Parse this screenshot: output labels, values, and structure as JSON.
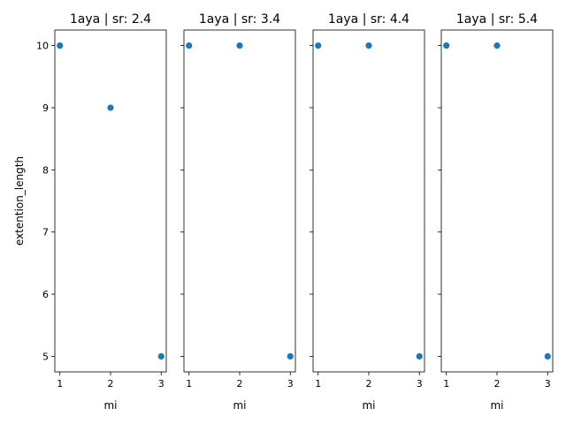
{
  "chart_data": [
    {
      "type": "scatter",
      "title": "1aya | sr: 2.4",
      "xlabel": "mi",
      "ylabel": "extention_length",
      "x": [
        1,
        2,
        3
      ],
      "y": [
        10,
        9,
        5
      ],
      "xlim": [
        0.9,
        3.1
      ],
      "ylim": [
        4.75,
        10.25
      ],
      "xticks": [
        1,
        2,
        3
      ],
      "yticks": [
        5,
        6,
        7,
        8,
        9,
        10
      ],
      "color": "#1f77b4",
      "grid": false
    },
    {
      "type": "scatter",
      "title": "1aya | sr: 3.4",
      "xlabel": "mi",
      "ylabel": "",
      "x": [
        1,
        2,
        3
      ],
      "y": [
        10,
        10,
        5
      ],
      "xlim": [
        0.9,
        3.1
      ],
      "ylim": [
        4.75,
        10.25
      ],
      "xticks": [
        1,
        2,
        3
      ],
      "yticks": [
        5,
        6,
        7,
        8,
        9,
        10
      ],
      "color": "#1f77b4",
      "grid": false
    },
    {
      "type": "scatter",
      "title": "1aya | sr: 4.4",
      "xlabel": "mi",
      "ylabel": "",
      "x": [
        1,
        2,
        3
      ],
      "y": [
        10,
        10,
        5
      ],
      "xlim": [
        0.9,
        3.1
      ],
      "ylim": [
        4.75,
        10.25
      ],
      "xticks": [
        1,
        2,
        3
      ],
      "yticks": [
        5,
        6,
        7,
        8,
        9,
        10
      ],
      "color": "#1f77b4",
      "grid": false
    },
    {
      "type": "scatter",
      "title": "1aya | sr: 5.4",
      "xlabel": "mi",
      "ylabel": "",
      "x": [
        1,
        2,
        3
      ],
      "y": [
        10,
        10,
        5
      ],
      "xlim": [
        0.9,
        3.1
      ],
      "ylim": [
        4.75,
        10.25
      ],
      "xticks": [
        1,
        2,
        3
      ],
      "yticks": [
        5,
        6,
        7,
        8,
        9,
        10
      ],
      "color": "#1f77b4",
      "grid": false
    }
  ]
}
